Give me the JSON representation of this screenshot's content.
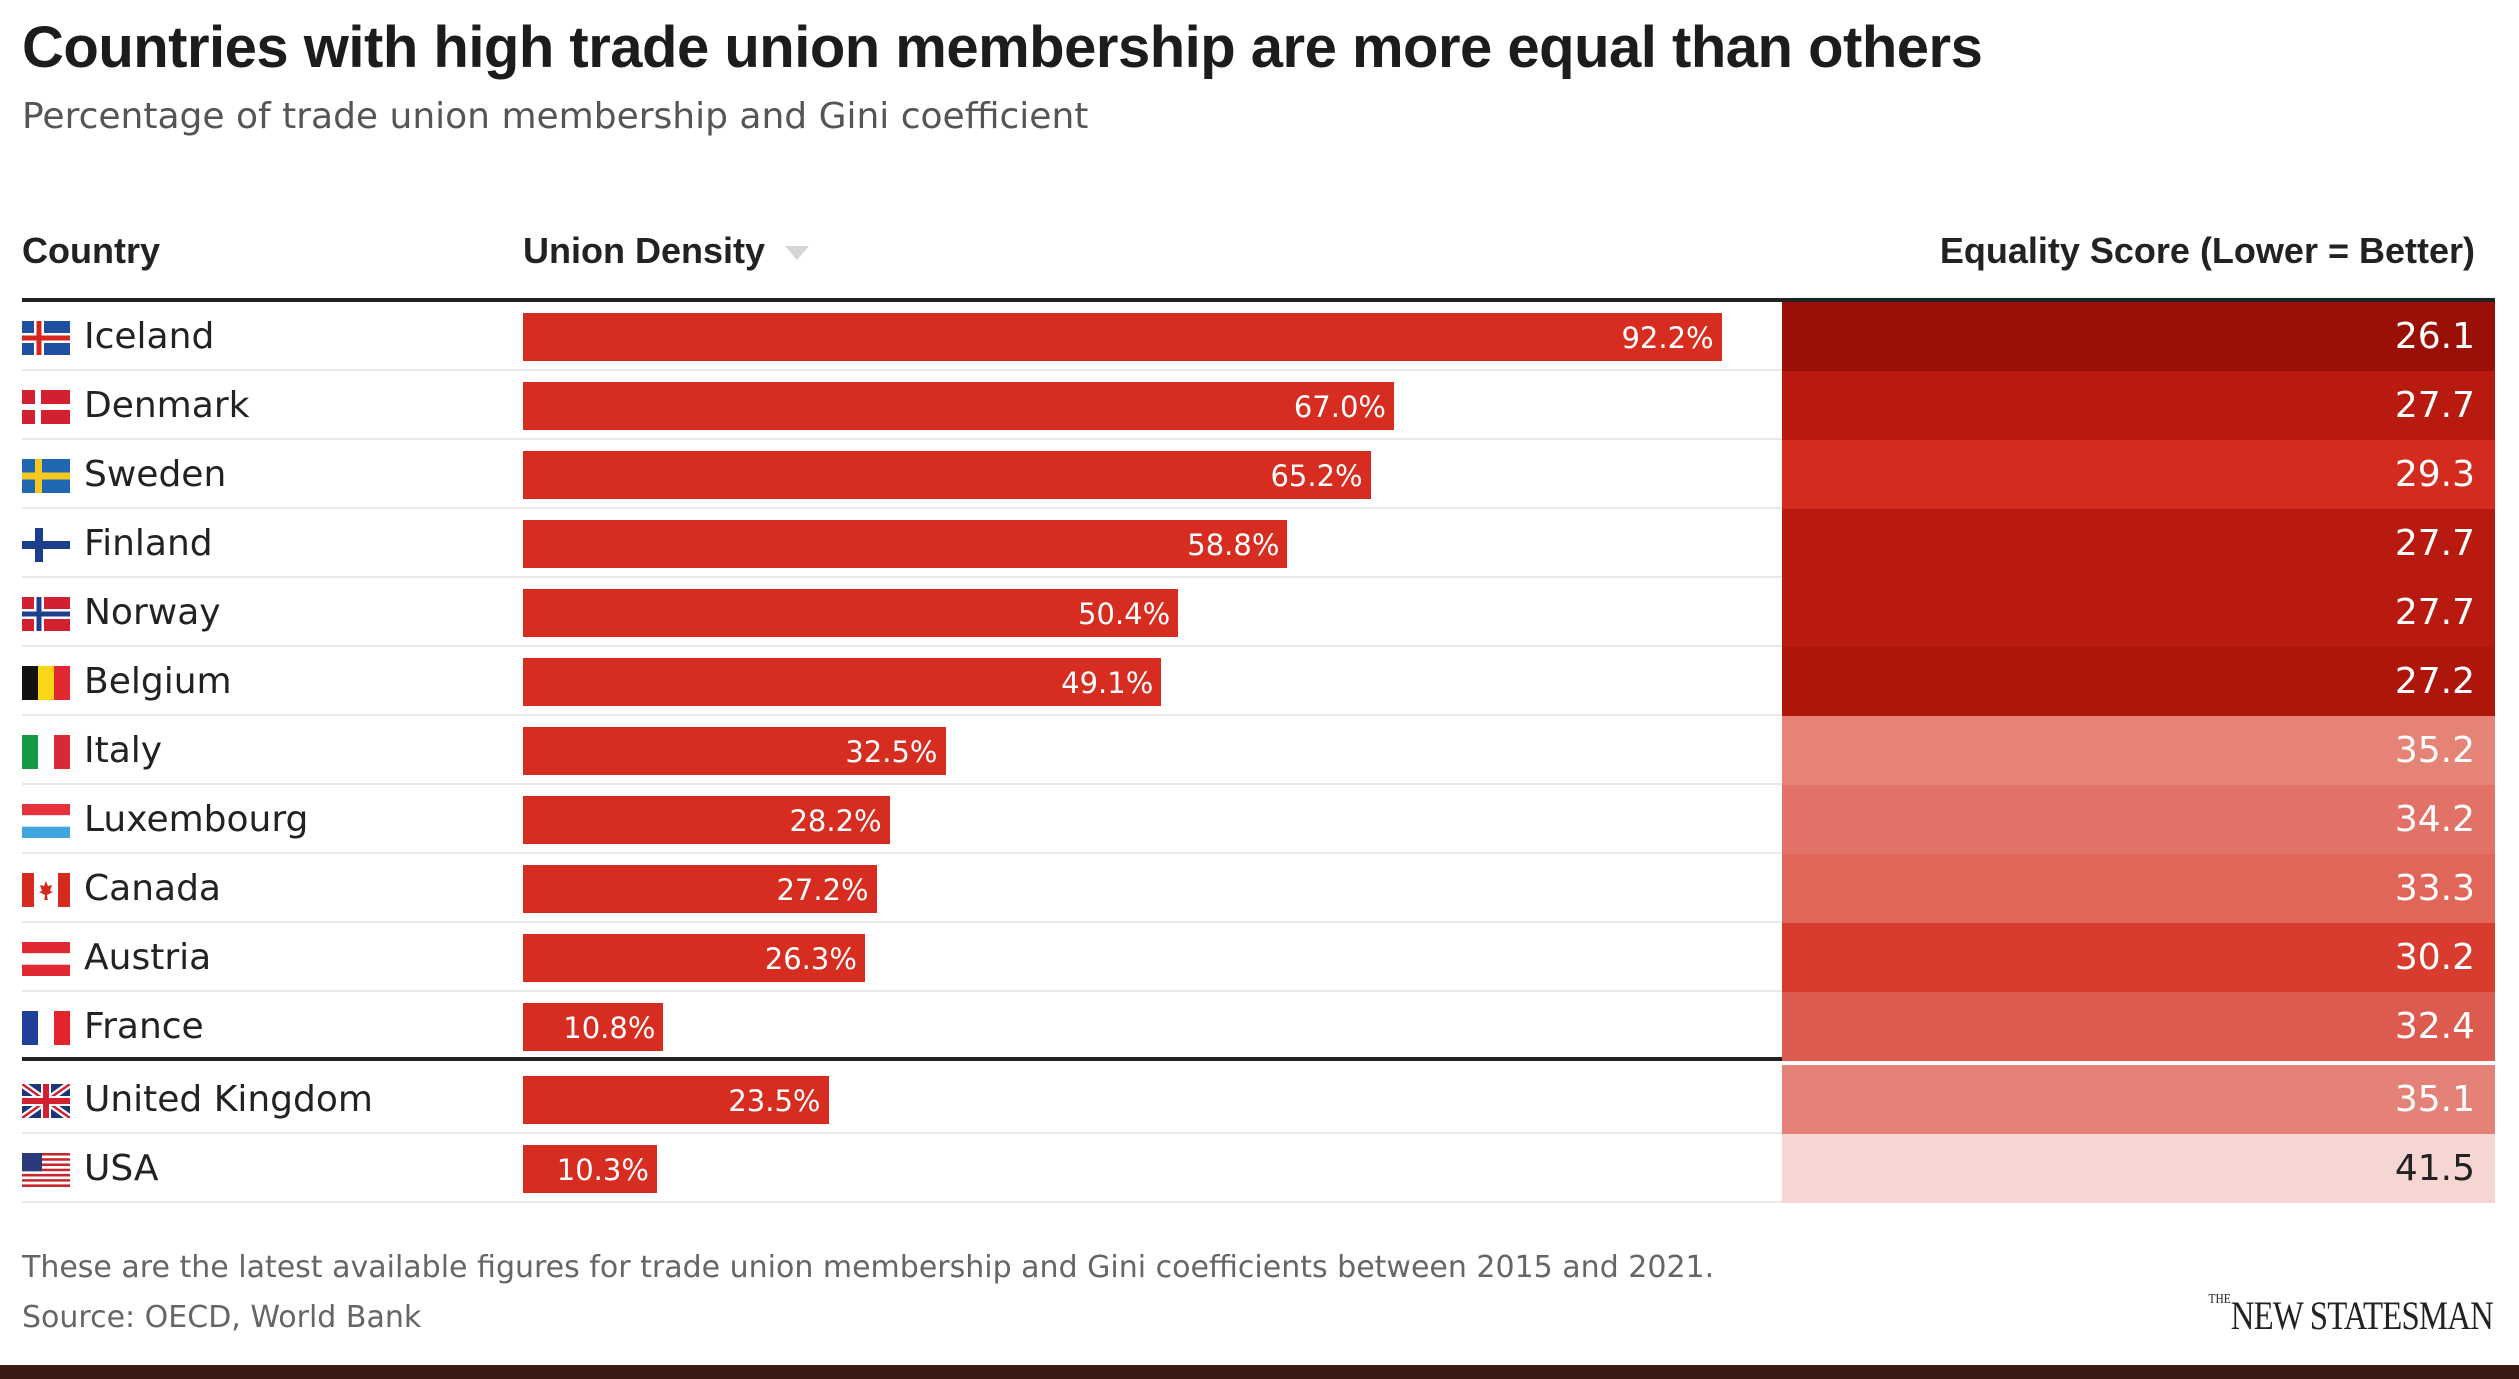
{
  "title": "Countries with high trade union membership are more equal than others",
  "subtitle": "Percentage of trade union membership and Gini coefficient",
  "columns": {
    "country": "Country",
    "density": "Union Density",
    "equality": "Equality Score (Lower = Better)"
  },
  "footnote": "These are the latest available figures for trade union membership and Gini coefficients between 2015 and 2021.",
  "source": "Source: OECD, World Bank",
  "logo": {
    "the": "THE",
    "name": "NEW STATESMAN"
  },
  "colors": {
    "bar": "#d62d20",
    "band": "#3b1a14"
  },
  "chart_data": {
    "type": "table",
    "density_max": 100,
    "rows": [
      {
        "country": "Iceland",
        "flag": "iceland-flag-icon",
        "density": 92.2,
        "density_label": "92.2%",
        "equality": "26.1",
        "color": "#9b1006",
        "text_color": "#ffffff"
      },
      {
        "country": "Denmark",
        "flag": "denmark-flag-icon",
        "density": 67.0,
        "density_label": "67.0%",
        "equality": "27.7",
        "color": "#b81a0f",
        "text_color": "#ffffff"
      },
      {
        "country": "Sweden",
        "flag": "sweden-flag-icon",
        "density": 65.2,
        "density_label": "65.2%",
        "equality": "29.3",
        "color": "#d42b1f",
        "text_color": "#ffffff"
      },
      {
        "country": "Finland",
        "flag": "finland-flag-icon",
        "density": 58.8,
        "density_label": "58.8%",
        "equality": "27.7",
        "color": "#b81a0f",
        "text_color": "#ffffff"
      },
      {
        "country": "Norway",
        "flag": "norway-flag-icon",
        "density": 50.4,
        "density_label": "50.4%",
        "equality": "27.7",
        "color": "#b81a0f",
        "text_color": "#ffffff"
      },
      {
        "country": "Belgium",
        "flag": "belgium-flag-icon",
        "density": 49.1,
        "density_label": "49.1%",
        "equality": "27.2",
        "color": "#af160b",
        "text_color": "#ffffff"
      },
      {
        "country": "Italy",
        "flag": "italy-flag-icon",
        "density": 32.5,
        "density_label": "32.5%",
        "equality": "35.2",
        "color": "#e58377",
        "text_color": "#ffffff"
      },
      {
        "country": "Luxembourg",
        "flag": "luxembourg-flag-icon",
        "density": 28.2,
        "density_label": "28.2%",
        "equality": "34.2",
        "color": "#e27267",
        "text_color": "#ffffff"
      },
      {
        "country": "Canada",
        "flag": "canada-flag-icon",
        "density": 27.2,
        "density_label": "27.2%",
        "equality": "33.3",
        "color": "#df6659",
        "text_color": "#ffffff"
      },
      {
        "country": "Austria",
        "flag": "austria-flag-icon",
        "density": 26.3,
        "density_label": "26.3%",
        "equality": "30.2",
        "color": "#d83c2f",
        "text_color": "#ffffff"
      },
      {
        "country": "France",
        "flag": "france-flag-icon",
        "density": 10.8,
        "density_label": "10.8%",
        "equality": "32.4",
        "color": "#dd5a4e",
        "text_color": "#ffffff"
      },
      {
        "country": "United Kingdom",
        "flag": "uk-flag-icon",
        "density": 23.5,
        "density_label": "23.5%",
        "equality": "35.1",
        "color": "#e58277",
        "text_color": "#ffffff"
      },
      {
        "country": "USA",
        "flag": "usa-flag-icon",
        "density": 10.3,
        "density_label": "10.3%",
        "equality": "41.5",
        "color": "#f6d6d3",
        "text_color": "#222222"
      }
    ]
  }
}
